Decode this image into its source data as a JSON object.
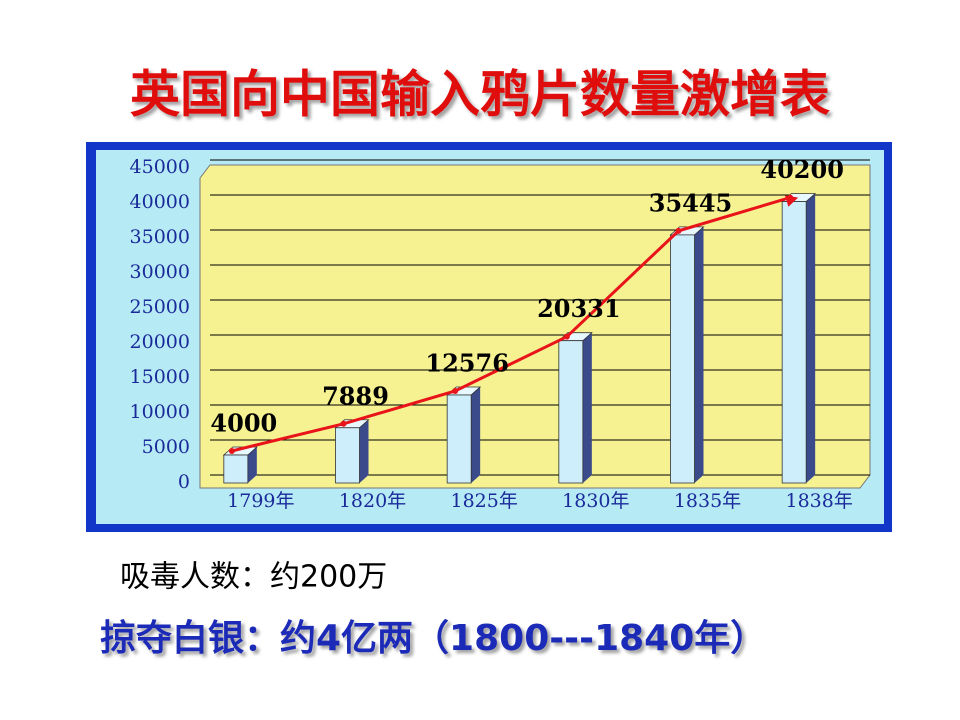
{
  "chart_data": {
    "type": "bar",
    "title": "英国向中国输入鸦片数量激增表",
    "categories": [
      "1799年",
      "1820年",
      "1825年",
      "1830年",
      "1835年",
      "1838年"
    ],
    "values": [
      4000,
      7889,
      12576,
      20331,
      35445,
      40200
    ],
    "color": "#cfeefc",
    "line_color": "#e8141a",
    "ylim": [
      0,
      45000
    ],
    "yticks": [
      0,
      5000,
      10000,
      15000,
      20000,
      25000,
      30000,
      35000,
      40000,
      45000
    ],
    "grid": true,
    "annotations": [
      "吸毒人数：约200万",
      "掠夺白银：约4亿两（1800---1840年）"
    ]
  }
}
